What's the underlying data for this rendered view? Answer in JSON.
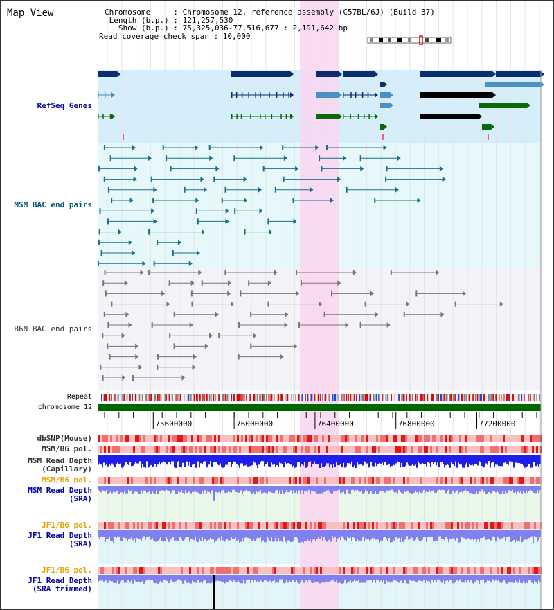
{
  "page": {
    "title": "Map View"
  },
  "header": {
    "lines": [
      "Chromosome     : Chromosome 12, reference assembly (C57BL/6J) (Build 37)",
      " Length (b.p.) : 121,257,530",
      "   Show (b.p.) : 75,325,036-77,516,677 : 2,191,642 bp",
      "Read coverage check span : 10,000"
    ]
  },
  "tracks": {
    "refseq": "RefSeq Genes",
    "msm_bac": "MSM BAC end pairs",
    "b6n_bac": "B6N BAC end pairs",
    "repeat": "Repeat",
    "chromosome": "chromosome 12",
    "dbsnp": "dbSNP(Mouse)",
    "msm_b6_pol_1": "MSM/B6 pol.",
    "msm_read_depth_cap": "MSM Read Depth\n(Capillary)",
    "msm_b6_pol_2": "MSM/B6 pol.",
    "msm_read_depth_sra": "MSM Read Depth\n(SRA)",
    "jf1_b6_pol_1": "JF1/B6 pol.",
    "jf1_read_depth_sra": "JF1 Read Depth\n(SRA)",
    "jf1_b6_pol_2": "JF1/B6 pol.",
    "jf1_read_depth_trim": "JF1 Read Depth\n(SRA trimmed)"
  },
  "axis": {
    "ticks": [
      "75600000",
      "76000000",
      "76400000",
      "76800000",
      "77200000"
    ]
  },
  "colors": {
    "refseq_dark": "#0a2e6e",
    "refseq_light": "#4a90c0",
    "refseq_green": "#0a6a0a",
    "bac_teal": "#1d6e8a",
    "bac_gray": "#777777",
    "highlight": "#f9d6f0",
    "read_depth": "#1f1fe8",
    "read_depth_light": "#8080f0",
    "pol_red": "#e03030",
    "chromosome_green": "#006600"
  },
  "chart_data": {
    "type": "table",
    "x_range": [
      75325036,
      77516677
    ],
    "highlight_region": [
      76325000,
      76520000
    ]
  }
}
